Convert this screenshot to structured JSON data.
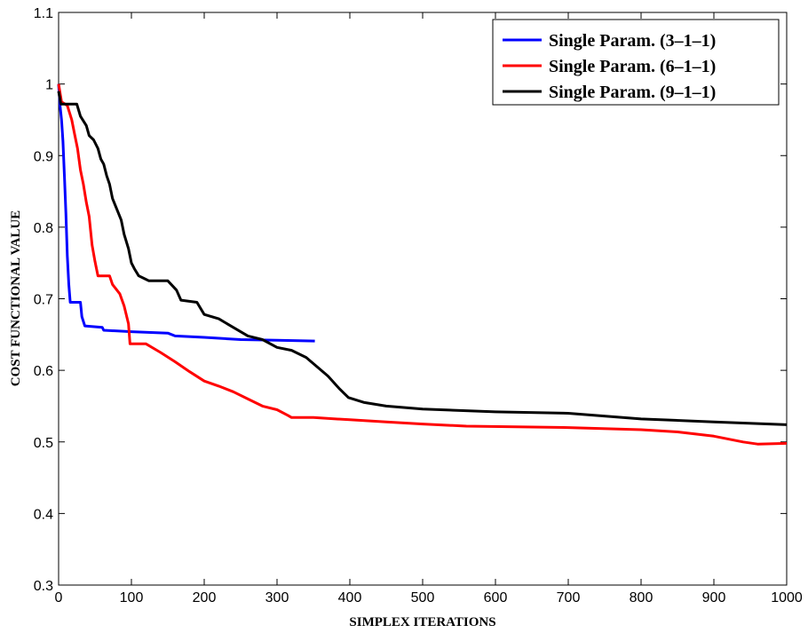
{
  "chart_data": {
    "type": "line",
    "title": "",
    "xlabel": "SIMPLEX ITERATIONS",
    "ylabel": "COST FUNCTIONAL VALUE",
    "xlim": [
      0,
      1000
    ],
    "ylim": [
      0.3,
      1.1
    ],
    "xticks": [
      0,
      100,
      200,
      300,
      400,
      500,
      600,
      700,
      800,
      900,
      1000
    ],
    "yticks": [
      0.3,
      0.4,
      0.5,
      0.6,
      0.7,
      0.8,
      0.9,
      1,
      1.1
    ],
    "grid": false,
    "legend_position": "top-right",
    "series": [
      {
        "name": "Single Param. (3–1–1)",
        "color": "#0000ff",
        "points": [
          [
            0,
            1.0
          ],
          [
            2,
            0.97
          ],
          [
            4,
            0.95
          ],
          [
            6,
            0.92
          ],
          [
            8,
            0.87
          ],
          [
            10,
            0.82
          ],
          [
            12,
            0.76
          ],
          [
            14,
            0.72
          ],
          [
            16,
            0.695
          ],
          [
            30,
            0.695
          ],
          [
            32,
            0.675
          ],
          [
            36,
            0.662
          ],
          [
            60,
            0.66
          ],
          [
            62,
            0.656
          ],
          [
            100,
            0.654
          ],
          [
            150,
            0.652
          ],
          [
            160,
            0.648
          ],
          [
            200,
            0.646
          ],
          [
            250,
            0.643
          ],
          [
            300,
            0.642
          ],
          [
            352,
            0.641
          ]
        ]
      },
      {
        "name": "Single Param. (6–1–1)",
        "color": "#ff0000",
        "points": [
          [
            0,
            1.0
          ],
          [
            4,
            0.975
          ],
          [
            12,
            0.97
          ],
          [
            18,
            0.95
          ],
          [
            22,
            0.93
          ],
          [
            26,
            0.91
          ],
          [
            30,
            0.88
          ],
          [
            34,
            0.86
          ],
          [
            38,
            0.835
          ],
          [
            42,
            0.815
          ],
          [
            46,
            0.775
          ],
          [
            50,
            0.752
          ],
          [
            54,
            0.732
          ],
          [
            70,
            0.732
          ],
          [
            74,
            0.72
          ],
          [
            84,
            0.707
          ],
          [
            90,
            0.69
          ],
          [
            96,
            0.665
          ],
          [
            98,
            0.637
          ],
          [
            120,
            0.637
          ],
          [
            140,
            0.625
          ],
          [
            160,
            0.612
          ],
          [
            180,
            0.598
          ],
          [
            200,
            0.585
          ],
          [
            220,
            0.578
          ],
          [
            240,
            0.57
          ],
          [
            260,
            0.56
          ],
          [
            280,
            0.55
          ],
          [
            300,
            0.545
          ],
          [
            315,
            0.537
          ],
          [
            320,
            0.534
          ],
          [
            350,
            0.534
          ],
          [
            400,
            0.531
          ],
          [
            450,
            0.528
          ],
          [
            500,
            0.525
          ],
          [
            560,
            0.522
          ],
          [
            700,
            0.52
          ],
          [
            800,
            0.517
          ],
          [
            850,
            0.514
          ],
          [
            900,
            0.508
          ],
          [
            940,
            0.5
          ],
          [
            960,
            0.497
          ],
          [
            1000,
            0.498
          ]
        ]
      },
      {
        "name": "Single Param. (9–1–1)",
        "color": "#000000",
        "points": [
          [
            0,
            0.99
          ],
          [
            3,
            0.972
          ],
          [
            25,
            0.972
          ],
          [
            30,
            0.955
          ],
          [
            38,
            0.942
          ],
          [
            42,
            0.928
          ],
          [
            48,
            0.922
          ],
          [
            54,
            0.91
          ],
          [
            58,
            0.895
          ],
          [
            62,
            0.888
          ],
          [
            66,
            0.872
          ],
          [
            70,
            0.86
          ],
          [
            74,
            0.84
          ],
          [
            80,
            0.825
          ],
          [
            86,
            0.81
          ],
          [
            90,
            0.79
          ],
          [
            96,
            0.77
          ],
          [
            100,
            0.75
          ],
          [
            104,
            0.742
          ],
          [
            110,
            0.732
          ],
          [
            118,
            0.728
          ],
          [
            124,
            0.725
          ],
          [
            150,
            0.725
          ],
          [
            162,
            0.712
          ],
          [
            168,
            0.698
          ],
          [
            190,
            0.695
          ],
          [
            200,
            0.678
          ],
          [
            220,
            0.672
          ],
          [
            240,
            0.66
          ],
          [
            260,
            0.648
          ],
          [
            280,
            0.643
          ],
          [
            300,
            0.632
          ],
          [
            320,
            0.628
          ],
          [
            340,
            0.618
          ],
          [
            355,
            0.605
          ],
          [
            370,
            0.592
          ],
          [
            385,
            0.575
          ],
          [
            398,
            0.562
          ],
          [
            420,
            0.555
          ],
          [
            450,
            0.55
          ],
          [
            500,
            0.546
          ],
          [
            600,
            0.542
          ],
          [
            700,
            0.54
          ],
          [
            800,
            0.532
          ],
          [
            900,
            0.528
          ],
          [
            1000,
            0.524
          ]
        ]
      }
    ]
  }
}
